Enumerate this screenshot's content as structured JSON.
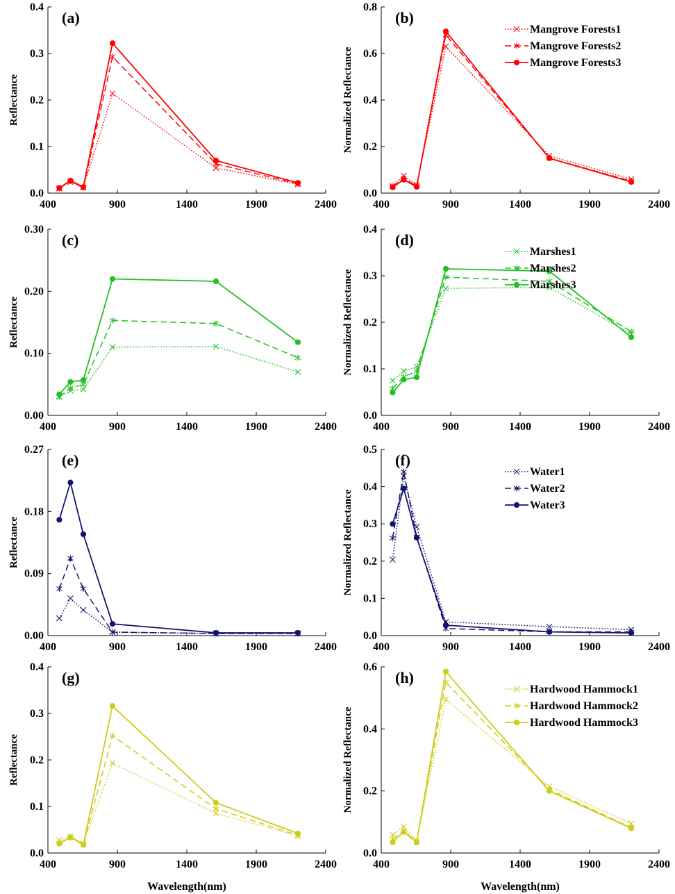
{
  "chart_data": [
    {
      "type": "line",
      "panel_label": "(a)",
      "ylabel": "Reflectance",
      "xlabel": "",
      "xlim": [
        400,
        2400
      ],
      "xticks": [
        "400",
        "900",
        "1400",
        "1900",
        "2400"
      ],
      "ylim": [
        0,
        0.4
      ],
      "yticks": [
        "0.0",
        "0.1",
        "0.2",
        "0.3",
        "0.4"
      ],
      "legend": false,
      "color": "#ff0000",
      "series": [
        {
          "name": "Mangrove Forests1",
          "style": "dotted",
          "marker": "x",
          "x": [
            482,
            562,
            655,
            865,
            1610,
            2200
          ],
          "y": [
            0.01,
            0.024,
            0.012,
            0.214,
            0.054,
            0.019
          ]
        },
        {
          "name": "Mangrove Forests2",
          "style": "dashed",
          "marker": "star",
          "x": [
            482,
            562,
            655,
            865,
            1610,
            2200
          ],
          "y": [
            0.01,
            0.026,
            0.012,
            0.293,
            0.063,
            0.02
          ]
        },
        {
          "name": "Mangrove Forests3",
          "style": "solid",
          "marker": "dot",
          "x": [
            482,
            562,
            655,
            865,
            1610,
            2200
          ],
          "y": [
            0.011,
            0.027,
            0.013,
            0.322,
            0.07,
            0.022
          ]
        }
      ]
    },
    {
      "type": "line",
      "panel_label": "(b)",
      "ylabel": "Normalized Reflectance",
      "xlabel": "",
      "xlim": [
        400,
        2400
      ],
      "xticks": [
        "400",
        "900",
        "1400",
        "1900",
        "2400"
      ],
      "ylim": [
        0,
        0.8
      ],
      "yticks": [
        "0.0",
        "0.2",
        "0.4",
        "0.6",
        "0.8"
      ],
      "legend": true,
      "color": "#ff0000",
      "series": [
        {
          "name": "Mangrove Forests1",
          "style": "dotted",
          "marker": "x",
          "x": [
            482,
            562,
            655,
            865,
            1610,
            2200
          ],
          "y": [
            0.03,
            0.075,
            0.035,
            0.63,
            0.16,
            0.06
          ]
        },
        {
          "name": "Mangrove Forests2",
          "style": "dashed",
          "marker": "star",
          "x": [
            482,
            562,
            655,
            865,
            1610,
            2200
          ],
          "y": [
            0.028,
            0.063,
            0.03,
            0.68,
            0.15,
            0.052
          ]
        },
        {
          "name": "Mangrove Forests3",
          "style": "solid",
          "marker": "dot",
          "x": [
            482,
            562,
            655,
            865,
            1610,
            2200
          ],
          "y": [
            0.025,
            0.058,
            0.027,
            0.695,
            0.15,
            0.048
          ]
        }
      ]
    },
    {
      "type": "line",
      "panel_label": "(c)",
      "ylabel": "Reflectance",
      "xlabel": "",
      "xlim": [
        400,
        2400
      ],
      "xticks": [
        "400",
        "900",
        "1400",
        "1900",
        "2400"
      ],
      "ylim": [
        0,
        0.3
      ],
      "yticks": [
        "0.00",
        "0.10",
        "0.20",
        "0.30"
      ],
      "legend": false,
      "color": "#22c022",
      "series": [
        {
          "name": "Marshes1",
          "style": "dotted",
          "marker": "x",
          "x": [
            482,
            562,
            655,
            865,
            1610,
            2200
          ],
          "y": [
            0.03,
            0.04,
            0.042,
            0.11,
            0.111,
            0.07
          ]
        },
        {
          "name": "Marshes2",
          "style": "dashed",
          "marker": "star",
          "x": [
            482,
            562,
            655,
            865,
            1610,
            2200
          ],
          "y": [
            0.03,
            0.044,
            0.05,
            0.153,
            0.148,
            0.093
          ]
        },
        {
          "name": "Marshes3",
          "style": "solid",
          "marker": "dot",
          "x": [
            482,
            562,
            655,
            865,
            1610,
            2200
          ],
          "y": [
            0.034,
            0.054,
            0.057,
            0.22,
            0.216,
            0.118
          ]
        }
      ]
    },
    {
      "type": "line",
      "panel_label": "(d)",
      "ylabel": "Normalized Reflectance",
      "xlabel": "",
      "xlim": [
        400,
        2400
      ],
      "xticks": [
        "400",
        "900",
        "1400",
        "1900",
        "2400"
      ],
      "ylim": [
        0,
        0.4
      ],
      "yticks": [
        "0.0",
        "0.1",
        "0.2",
        "0.3",
        "0.4"
      ],
      "legend": true,
      "color": "#22c022",
      "series": [
        {
          "name": "Marshes1",
          "style": "dotted",
          "marker": "x",
          "x": [
            482,
            562,
            655,
            865,
            1610,
            2200
          ],
          "y": [
            0.075,
            0.095,
            0.105,
            0.273,
            0.275,
            0.175
          ]
        },
        {
          "name": "Marshes2",
          "style": "dashed",
          "marker": "star",
          "x": [
            482,
            562,
            655,
            865,
            1610,
            2200
          ],
          "y": [
            0.058,
            0.083,
            0.095,
            0.297,
            0.288,
            0.18
          ]
        },
        {
          "name": "Marshes3",
          "style": "solid",
          "marker": "dot",
          "x": [
            482,
            562,
            655,
            865,
            1610,
            2200
          ],
          "y": [
            0.049,
            0.077,
            0.082,
            0.315,
            0.31,
            0.168
          ]
        }
      ]
    },
    {
      "type": "line",
      "panel_label": "(e)",
      "ylabel": "Reflectance",
      "xlabel": "",
      "xlim": [
        400,
        2400
      ],
      "xticks": [
        "400",
        "900",
        "1400",
        "1900",
        "2400"
      ],
      "ylim": [
        0,
        0.27
      ],
      "yticks": [
        "0.00",
        "0.09",
        "0.18",
        "0.27"
      ],
      "legend": false,
      "color": "#141470",
      "series": [
        {
          "name": "Water1",
          "style": "dotted",
          "marker": "x",
          "x": [
            482,
            562,
            655,
            865,
            1610,
            2200
          ],
          "y": [
            0.025,
            0.054,
            0.037,
            0.005,
            0.003,
            0.003
          ]
        },
        {
          "name": "Water2",
          "style": "dashed",
          "marker": "star",
          "x": [
            482,
            562,
            655,
            865,
            1610,
            2200
          ],
          "y": [
            0.068,
            0.112,
            0.068,
            0.005,
            0.003,
            0.003
          ]
        },
        {
          "name": "Water3",
          "style": "solid",
          "marker": "dot",
          "x": [
            482,
            562,
            655,
            865,
            1610,
            2200
          ],
          "y": [
            0.168,
            0.222,
            0.147,
            0.017,
            0.004,
            0.004
          ]
        }
      ]
    },
    {
      "type": "line",
      "panel_label": "(f)",
      "ylabel": "Normalized Reflectance",
      "xlabel": "",
      "xlim": [
        400,
        2400
      ],
      "xticks": [
        "400",
        "900",
        "1400",
        "1900",
        "2400"
      ],
      "ylim": [
        0,
        0.5
      ],
      "yticks": [
        "0.0",
        "0.1",
        "0.2",
        "0.3",
        "0.4",
        "0.5"
      ],
      "legend": true,
      "color": "#141470",
      "series": [
        {
          "name": "Water1",
          "style": "dotted",
          "marker": "x",
          "x": [
            482,
            562,
            655,
            865,
            1610,
            2200
          ],
          "y": [
            0.204,
            0.428,
            0.292,
            0.037,
            0.024,
            0.016
          ]
        },
        {
          "name": "Water2",
          "style": "dashed",
          "marker": "star",
          "x": [
            482,
            562,
            655,
            865,
            1610,
            2200
          ],
          "y": [
            0.262,
            0.44,
            0.265,
            0.019,
            0.01,
            0.01
          ]
        },
        {
          "name": "Water3",
          "style": "solid",
          "marker": "dot",
          "x": [
            482,
            562,
            655,
            865,
            1610,
            2200
          ],
          "y": [
            0.3,
            0.395,
            0.263,
            0.028,
            0.01,
            0.007
          ]
        }
      ]
    },
    {
      "type": "line",
      "panel_label": "(g)",
      "ylabel": "Reflectance",
      "xlabel": "Wavelength(nm)",
      "xlim": [
        400,
        2400
      ],
      "xticks": [
        "400",
        "900",
        "1400",
        "1900",
        "2400"
      ],
      "ylim": [
        0,
        0.4
      ],
      "yticks": [
        "0.0",
        "0.1",
        "0.2",
        "0.3",
        "0.4"
      ],
      "legend": false,
      "color": "#cccc1a",
      "series": [
        {
          "name": "Hardwood Hammock1",
          "style": "dotted",
          "marker": "x",
          "x": [
            482,
            562,
            655,
            865,
            1610,
            2200
          ],
          "y": [
            0.028,
            0.036,
            0.02,
            0.193,
            0.085,
            0.037
          ]
        },
        {
          "name": "Hardwood Hammock2",
          "style": "dashed",
          "marker": "star",
          "x": [
            482,
            562,
            655,
            865,
            1610,
            2200
          ],
          "y": [
            0.022,
            0.033,
            0.018,
            0.252,
            0.095,
            0.038
          ]
        },
        {
          "name": "Hardwood Hammock3",
          "style": "solid",
          "marker": "dot",
          "x": [
            482,
            562,
            655,
            865,
            1610,
            2200
          ],
          "y": [
            0.02,
            0.034,
            0.018,
            0.316,
            0.108,
            0.042
          ]
        }
      ]
    },
    {
      "type": "line",
      "panel_label": "(h)",
      "ylabel": "Normalized Reflectance",
      "xlabel": "Wavelength(nm)",
      "xlim": [
        400,
        2400
      ],
      "xticks": [
        "400",
        "900",
        "1400",
        "1900",
        "2400"
      ],
      "ylim": [
        0,
        0.6
      ],
      "yticks": [
        "0.0",
        "0.2",
        "0.4",
        "0.6"
      ],
      "legend": true,
      "color": "#cccc1a",
      "series": [
        {
          "name": "Hardwood Hammock1",
          "style": "dotted",
          "marker": "x",
          "x": [
            482,
            562,
            655,
            865,
            1610,
            2200
          ],
          "y": [
            0.058,
            0.085,
            0.04,
            0.495,
            0.215,
            0.095
          ]
        },
        {
          "name": "Hardwood Hammock2",
          "style": "dashed",
          "marker": "star",
          "x": [
            482,
            562,
            655,
            865,
            1610,
            2200
          ],
          "y": [
            0.045,
            0.072,
            0.036,
            0.55,
            0.205,
            0.082
          ]
        },
        {
          "name": "Hardwood Hammock3",
          "style": "solid",
          "marker": "dot",
          "x": [
            482,
            562,
            655,
            865,
            1610,
            2200
          ],
          "y": [
            0.035,
            0.068,
            0.034,
            0.585,
            0.2,
            0.08
          ]
        }
      ]
    }
  ]
}
